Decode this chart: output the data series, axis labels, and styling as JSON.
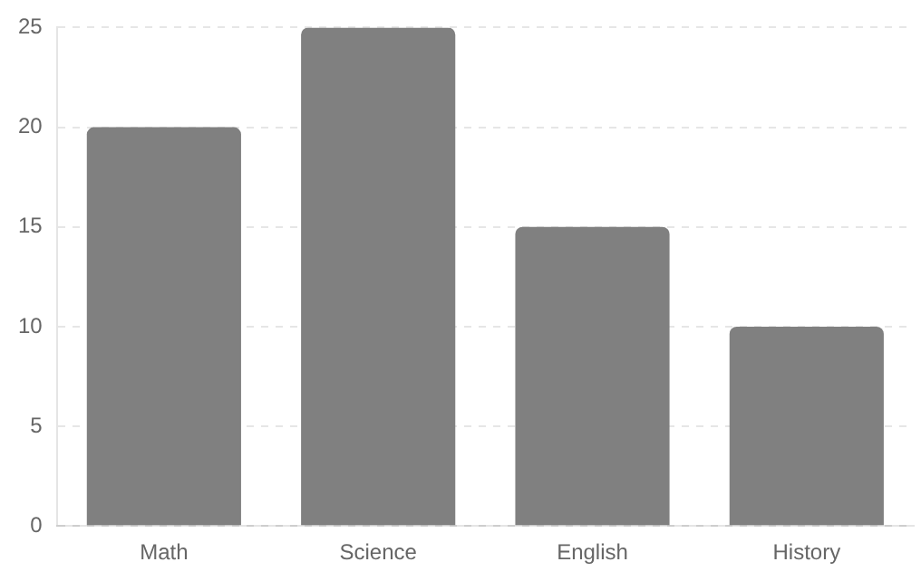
{
  "chart_data": {
    "type": "bar",
    "categories": [
      "Math",
      "Science",
      "English",
      "History"
    ],
    "values": [
      20,
      25,
      15,
      10
    ],
    "color": "#808080",
    "ylim": [
      0,
      25
    ],
    "yticks": [
      0,
      5,
      10,
      15,
      20,
      25
    ],
    "grid": "y",
    "legend": false
  }
}
